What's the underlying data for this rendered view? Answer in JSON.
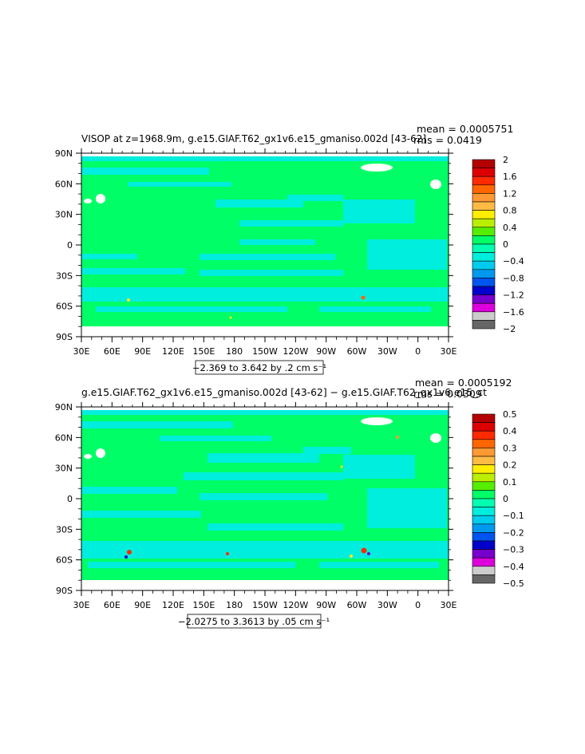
{
  "panels": [
    {
      "title": "VISOP at z=1968.9m, g.e15.GIAF.T62_gx1v6.e15_gmaniso.002d [43-62]",
      "mean_text": "mean = 0.0005751",
      "rms_text": "rms = 0.0419",
      "range_text": "−2.369 to 3.642 by .2 cm s⁻¹",
      "colorbar_labels": [
        "2",
        "1.6",
        "1.2",
        "0.8",
        "0.4",
        "0",
        "−0.4",
        "−0.8",
        "−1.2",
        "−1.6",
        "−2"
      ],
      "colorbar_colors": [
        "#b30000",
        "#dd0000",
        "#ff2a00",
        "#ff6600",
        "#ff9933",
        "#ffbb44",
        "#ffee00",
        "#bbee00",
        "#55ee00",
        "#00ff66",
        "#00ffb0",
        "#00eedd",
        "#00ccee",
        "#0099ee",
        "#0055ee",
        "#0000cc",
        "#7700cc",
        "#dd00dd",
        "#cccccc",
        "#666666"
      ]
    },
    {
      "title": "g.e15.GIAF.T62_gx1v6.e15_gmaniso.002d [43-62] − g.e15.GIAF.T62_gx1v6.e15_ct",
      "mean_text": "mean = 0.0005192",
      "rms_text": "rms = 0.0309",
      "range_text": "−2.0275 to 3.3613 by .05 cm s⁻¹",
      "colorbar_labels": [
        "0.5",
        "0.4",
        "0.3",
        "0.2",
        "0.1",
        "0",
        "−0.1",
        "−0.2",
        "−0.3",
        "−0.4",
        "−0.5"
      ],
      "colorbar_colors": [
        "#b30000",
        "#dd0000",
        "#ff2a00",
        "#ff6600",
        "#ff9933",
        "#ffbb44",
        "#ffee00",
        "#bbee00",
        "#55ee00",
        "#00ff66",
        "#00ffb0",
        "#00eedd",
        "#00ccee",
        "#0099ee",
        "#0055ee",
        "#0000cc",
        "#7700cc",
        "#dd00dd",
        "#cccccc",
        "#666666"
      ]
    }
  ],
  "chart_data": [
    {
      "type": "heatmap",
      "title": "VISOP at z=1968.9m, g.e15.GIAF.T62_gx1v6.e15_gmaniso.002d [43-62]",
      "x_tick_labels": [
        "30E",
        "60E",
        "90E",
        "120E",
        "150E",
        "180",
        "150W",
        "120W",
        "90W",
        "60W",
        "30W",
        "0",
        "30E"
      ],
      "y_tick_labels": [
        "90N",
        "60N",
        "30N",
        "0",
        "30S",
        "60S",
        "90S"
      ],
      "xlim": [
        30,
        390
      ],
      "ylim": [
        -90,
        90
      ],
      "colorbar_ticks": [
        2,
        1.6,
        1.2,
        0.8,
        0.4,
        0,
        -0.4,
        -0.8,
        -1.2,
        -1.6,
        -2
      ],
      "contour_min": -2.369,
      "contour_max": 3.642,
      "contour_interval": 0.2,
      "units": "cm s-1",
      "mean": 0.0005751,
      "rms": 0.0419,
      "dominant_color": "#00ff66",
      "secondary_color": "#00eedd"
    },
    {
      "type": "heatmap",
      "title": "g.e15.GIAF.T62_gx1v6.e15_gmaniso.002d [43-62] − g.e15.GIAF.T62_gx1v6.e15_ct",
      "x_tick_labels": [
        "30E",
        "60E",
        "90E",
        "120E",
        "150E",
        "180",
        "150W",
        "120W",
        "90W",
        "60W",
        "30W",
        "0",
        "30E"
      ],
      "y_tick_labels": [
        "90N",
        "60N",
        "30N",
        "0",
        "30S",
        "60S",
        "90S"
      ],
      "xlim": [
        30,
        390
      ],
      "ylim": [
        -90,
        90
      ],
      "colorbar_ticks": [
        0.5,
        0.4,
        0.3,
        0.2,
        0.1,
        0,
        -0.1,
        -0.2,
        -0.3,
        -0.4,
        -0.5
      ],
      "contour_min": -2.0275,
      "contour_max": 3.3613,
      "contour_interval": 0.05,
      "units": "cm s-1",
      "mean": 0.0005192,
      "rms": 0.0309,
      "dominant_color": "#00ff66",
      "secondary_color": "#00eedd"
    }
  ]
}
